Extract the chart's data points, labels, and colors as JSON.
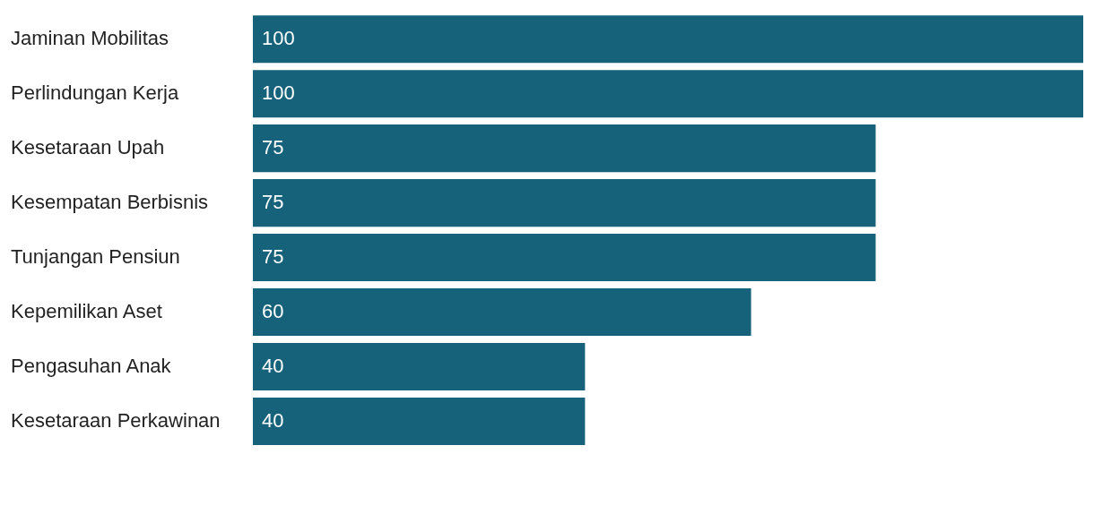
{
  "chart_data": {
    "type": "bar",
    "orientation": "horizontal",
    "categories": [
      "Jaminan Mobilitas",
      "Perlindungan Kerja",
      "Kesetaraan Upah",
      "Kesempatan Berbisnis",
      "Tunjangan Pensiun",
      "Kepemilikan Aset",
      "Pengasuhan Anak",
      "Kesetaraan Perkawinan"
    ],
    "values": [
      100,
      100,
      75,
      75,
      75,
      60,
      40,
      40
    ],
    "color": "#17627b",
    "data_labels": true,
    "legend": false
  }
}
